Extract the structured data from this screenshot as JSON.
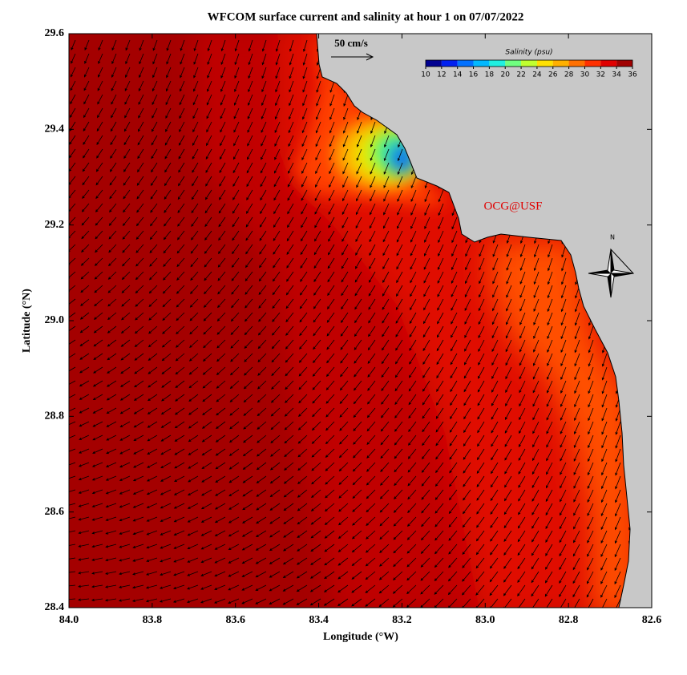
{
  "map": {
    "title": "WFCOM surface current and salinity at hour 1 on 07/07/2022",
    "xlabel": "Longitude (°W)",
    "ylabel": "Latitude (°N)",
    "xlim": [
      84.0,
      82.6
    ],
    "ylim": [
      28.4,
      29.6
    ],
    "xticks": [
      {
        "value": 84,
        "label": "84.0"
      },
      83.8,
      83.6,
      83.4,
      83.2,
      {
        "value": 83,
        "label": "83.0"
      },
      82.8,
      82.6
    ],
    "yticks": [
      28.4,
      28.6,
      28.8,
      {
        "value": 29,
        "label": "29.0"
      },
      29.2,
      29.4,
      29.6
    ],
    "colorbar": {
      "title": "Salinity (psu)",
      "ticks": [
        10,
        12,
        14,
        16,
        18,
        20,
        22,
        24,
        26,
        28,
        30,
        32,
        34,
        36
      ],
      "colors": [
        "#000090",
        "#0020f0",
        "#0070ff",
        "#00b8ff",
        "#20f0e0",
        "#70ff80",
        "#c0ff30",
        "#ffe000",
        "#ffb000",
        "#ff7000",
        "#ff3000",
        "#e00000",
        "#a00000"
      ]
    },
    "scale_label": "50 cm/s",
    "credit": "OCG@USF",
    "north_label": "N"
  }
}
